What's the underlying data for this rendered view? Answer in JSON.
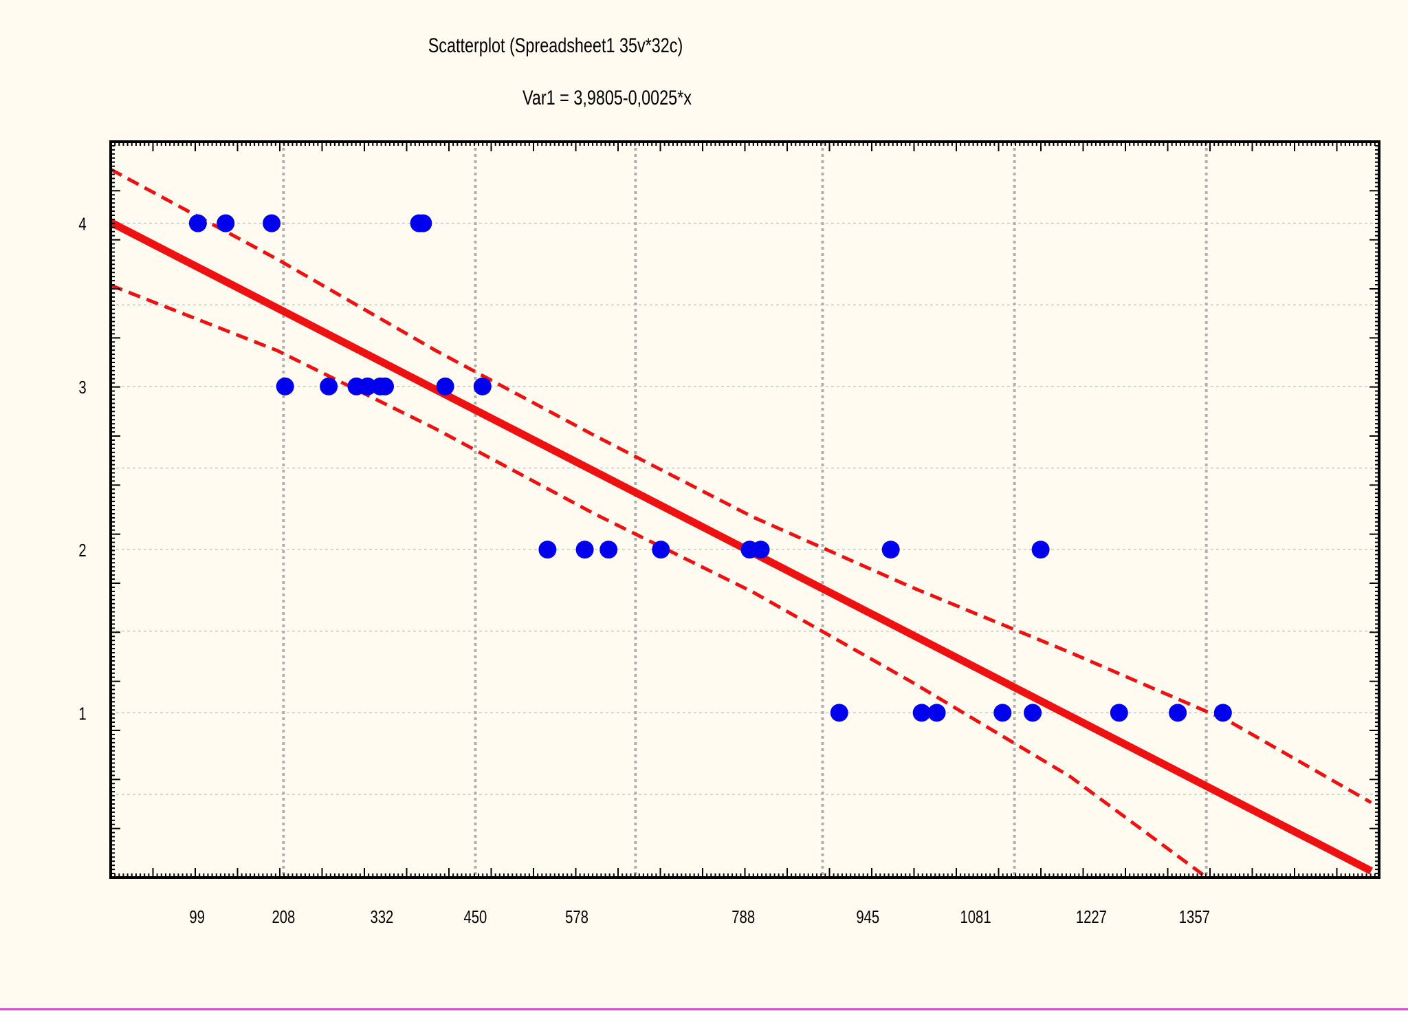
{
  "chart_data": {
    "type": "scatter",
    "title": "Scatterplot (Spreadsheet1 35v*32c)",
    "subtitle": "Var1 = 3,9805-0,0025*x",
    "xlabel": "",
    "ylabel": "",
    "xlim": [
      -10,
      1590
    ],
    "ylim": [
      -0.01,
      4.5
    ],
    "x_ticks": [
      99,
      208,
      332,
      450,
      578,
      788,
      945,
      1081,
      1227,
      1357
    ],
    "x_gridlines": [
      208,
      450,
      652,
      888,
      1130,
      1372
    ],
    "y_ticks": [
      1,
      2,
      3,
      4
    ],
    "y_gridlines": [
      0.5,
      1,
      1.5,
      2,
      2.5,
      3,
      3.5,
      4
    ],
    "grid": true,
    "series": [
      {
        "points": [
          [
            100,
            4
          ],
          [
            135,
            4
          ],
          [
            193,
            4
          ],
          [
            379,
            4
          ],
          [
            384,
            4
          ],
          [
            210,
            3
          ],
          [
            265,
            3
          ],
          [
            300,
            3
          ],
          [
            314,
            3
          ],
          [
            330,
            3
          ],
          [
            336,
            3
          ],
          [
            412,
            3
          ],
          [
            459,
            3
          ],
          [
            541,
            2
          ],
          [
            588,
            2
          ],
          [
            618,
            2
          ],
          [
            684,
            2
          ],
          [
            796,
            2
          ],
          [
            810,
            2
          ],
          [
            974,
            2
          ],
          [
            1163,
            2
          ],
          [
            909,
            1
          ],
          [
            1013,
            1
          ],
          [
            1032,
            1
          ],
          [
            1115,
            1
          ],
          [
            1153,
            1
          ],
          [
            1262,
            1
          ],
          [
            1336,
            1
          ],
          [
            1393,
            1
          ]
        ],
        "color": "#0000ee"
      }
    ],
    "regression": {
      "intercept": 3.9805,
      "slope": -0.0025,
      "x_range": [
        -10,
        1580
      ],
      "color": "#ee1111"
    },
    "confidence_band": {
      "upper": [
        [
          -10,
          4.33
        ],
        [
          200,
          3.78
        ],
        [
          400,
          3.22
        ],
        [
          600,
          2.7
        ],
        [
          800,
          2.2
        ],
        [
          1000,
          1.77
        ],
        [
          1200,
          1.37
        ],
        [
          1400,
          0.95
        ],
        [
          1580,
          0.45
        ]
      ],
      "lower": [
        [
          -10,
          3.62
        ],
        [
          200,
          3.22
        ],
        [
          400,
          2.74
        ],
        [
          600,
          2.22
        ],
        [
          800,
          1.74
        ],
        [
          1000,
          1.19
        ],
        [
          1200,
          0.61
        ],
        [
          1370,
          0.0
        ]
      ],
      "color": "#ee1111"
    }
  }
}
